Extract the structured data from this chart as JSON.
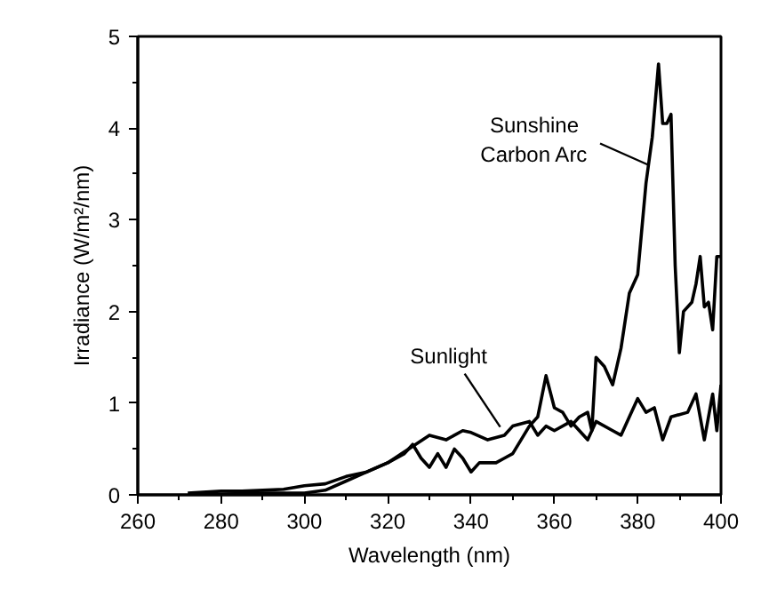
{
  "chart_data": {
    "type": "line",
    "xlabel": "Wavelength (nm)",
    "ylabel": "Irradiance (W/m²/nm)",
    "xlim": [
      260,
      400
    ],
    "xticks": [
      260,
      280,
      300,
      320,
      340,
      360,
      380,
      400
    ],
    "ylim": [
      0,
      5
    ],
    "yticks": [
      0,
      1,
      2,
      3,
      4,
      5
    ],
    "grid": false,
    "marker": "none",
    "line_style": "solid",
    "series": [
      {
        "color": "#000000",
        "x": [
          275,
          290,
          300,
          305,
          310,
          315,
          320,
          324,
          326,
          328,
          330,
          332,
          334,
          336,
          338,
          340,
          342,
          346,
          348,
          350,
          354,
          356,
          358,
          360,
          362,
          364,
          366,
          368,
          369,
          370,
          372,
          374,
          376,
          378,
          380,
          382,
          383.5,
          385,
          386,
          387,
          388,
          389,
          390,
          391,
          393,
          394,
          395,
          396,
          397,
          398,
          399,
          400
        ],
        "values": [
          0,
          0.02,
          0.02,
          0.05,
          0.15,
          0.25,
          0.35,
          0.45,
          0.55,
          0.4,
          0.3,
          0.45,
          0.3,
          0.5,
          0.4,
          0.25,
          0.35,
          0.35,
          0.4,
          0.45,
          0.75,
          0.85,
          1.3,
          0.95,
          0.9,
          0.75,
          0.85,
          0.9,
          0.7,
          1.5,
          1.4,
          1.2,
          1.6,
          2.2,
          2.4,
          3.4,
          3.9,
          4.7,
          4.05,
          4.05,
          4.15,
          2.5,
          1.55,
          2.0,
          2.1,
          2.3,
          2.6,
          2.05,
          2.1,
          1.8,
          2.6,
          2.6
        ]
      },
      {
        "color": "#000000",
        "x": [
          272,
          280,
          285,
          290,
          295,
          300,
          305,
          310,
          315,
          320,
          325,
          330,
          334,
          338,
          340,
          344,
          348,
          350,
          354,
          356,
          358,
          360,
          364,
          368,
          370,
          374,
          376,
          378,
          380,
          382,
          384,
          386,
          388,
          392,
          394,
          396,
          398,
          399,
          400
        ],
        "values": [
          0.02,
          0.04,
          0.04,
          0.05,
          0.06,
          0.1,
          0.12,
          0.2,
          0.25,
          0.35,
          0.5,
          0.65,
          0.6,
          0.7,
          0.68,
          0.6,
          0.65,
          0.75,
          0.8,
          0.65,
          0.75,
          0.7,
          0.8,
          0.6,
          0.8,
          0.7,
          0.65,
          0.85,
          1.05,
          0.9,
          0.95,
          0.6,
          0.85,
          0.9,
          1.1,
          0.6,
          1.1,
          0.7,
          1.2
        ]
      }
    ],
    "annotations": [
      {
        "text": "Sunshine\nCarbon Arc",
        "x": 382.5,
        "y": 3.6
      },
      {
        "text": "Sunlight",
        "x": 347,
        "y": 0.74
      }
    ]
  }
}
